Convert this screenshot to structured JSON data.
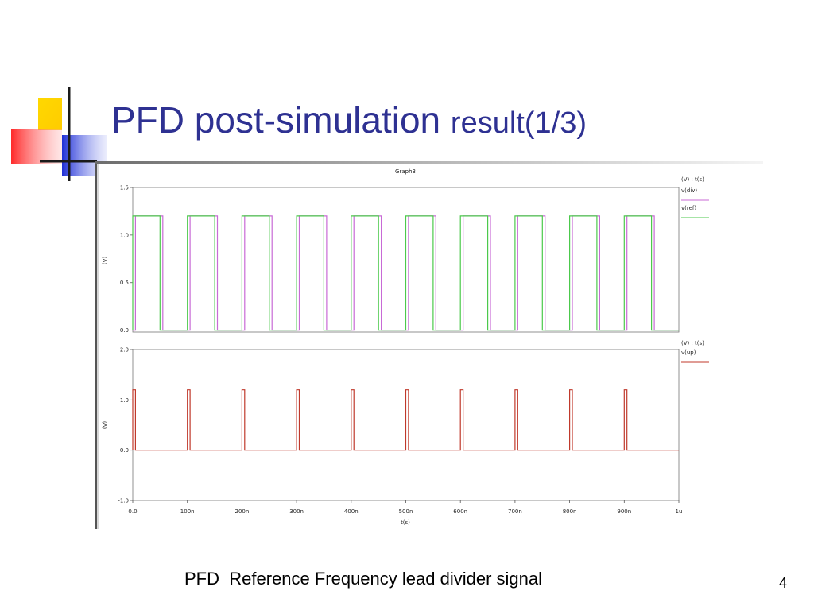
{
  "slide": {
    "title_main": "PFD post-simulation ",
    "title_sub": "result(1/3)",
    "caption": "PFD  Reference Frequency lead divider signal",
    "page_number": "4"
  },
  "colors": {
    "title": "#2e3192",
    "div_trace": "#c86ad6",
    "ref_trace": "#4cc94c",
    "up_trace": "#c0392b"
  },
  "chart_data": [
    {
      "type": "line",
      "title": "Graph3",
      "legend_header": "(V) : t(s)",
      "ylabel": "(V)",
      "xlabel": "",
      "xlim": [
        0,
        1000
      ],
      "ylim": [
        -0.02,
        1.5
      ],
      "x_ticks": [],
      "y_ticks": [
        "0.0",
        "0.5",
        "1.0",
        "1.5"
      ],
      "y_tick_values": [
        0.0,
        0.5,
        1.0,
        1.5
      ],
      "series": [
        {
          "name": "v(div)",
          "color": "#c86ad6",
          "x": [
            0,
            5,
            5,
            55,
            55,
            105,
            105,
            155,
            155,
            205,
            205,
            255,
            255,
            305,
            305,
            355,
            355,
            405,
            405,
            455,
            455,
            505,
            505,
            555,
            555,
            605,
            605,
            655,
            655,
            705,
            705,
            755,
            755,
            805,
            805,
            855,
            855,
            905,
            905,
            955,
            955,
            1000
          ],
          "y": [
            0,
            0,
            1.2,
            1.2,
            0,
            0,
            1.2,
            1.2,
            0,
            0,
            1.2,
            1.2,
            0,
            0,
            1.2,
            1.2,
            0,
            0,
            1.2,
            1.2,
            0,
            0,
            1.2,
            1.2,
            0,
            0,
            1.2,
            1.2,
            0,
            0,
            1.2,
            1.2,
            0,
            0,
            1.2,
            1.2,
            0,
            0,
            1.2,
            1.2,
            0,
            0
          ]
        },
        {
          "name": "v(ref)",
          "color": "#4cc94c",
          "x": [
            0,
            0,
            50,
            50,
            100,
            100,
            150,
            150,
            200,
            200,
            250,
            250,
            300,
            300,
            350,
            350,
            400,
            400,
            450,
            450,
            500,
            500,
            550,
            550,
            600,
            600,
            650,
            650,
            700,
            700,
            750,
            750,
            800,
            800,
            850,
            850,
            900,
            900,
            950,
            950,
            1000
          ],
          "y": [
            0,
            1.2,
            1.2,
            0,
            0,
            1.2,
            1.2,
            0,
            0,
            1.2,
            1.2,
            0,
            0,
            1.2,
            1.2,
            0,
            0,
            1.2,
            1.2,
            0,
            0,
            1.2,
            1.2,
            0,
            0,
            1.2,
            1.2,
            0,
            0,
            1.2,
            1.2,
            0,
            0,
            1.2,
            1.2,
            0,
            0,
            1.2,
            1.2,
            0,
            0
          ]
        }
      ]
    },
    {
      "type": "line",
      "title": "",
      "legend_header": "(V) : t(s)",
      "ylabel": "(V)",
      "xlabel": "t(s)",
      "xlim": [
        0,
        1000
      ],
      "ylim": [
        -1.0,
        2.0
      ],
      "x_ticks": [
        "0.0",
        "100n",
        "200n",
        "300n",
        "400n",
        "500n",
        "600n",
        "700n",
        "800n",
        "900n",
        "1u"
      ],
      "x_tick_values": [
        0,
        100,
        200,
        300,
        400,
        500,
        600,
        700,
        800,
        900,
        1000
      ],
      "y_ticks": [
        "-1.0",
        "0.0",
        "1.0",
        "2.0"
      ],
      "y_tick_values": [
        -1.0,
        0.0,
        1.0,
        2.0
      ],
      "series": [
        {
          "name": "v(up)",
          "color": "#c0392b",
          "x": [
            0,
            0,
            5,
            5,
            100,
            100,
            105,
            105,
            200,
            200,
            205,
            205,
            300,
            300,
            305,
            305,
            400,
            400,
            405,
            405,
            500,
            500,
            505,
            505,
            600,
            600,
            605,
            605,
            700,
            700,
            705,
            705,
            800,
            800,
            805,
            805,
            900,
            900,
            905,
            905,
            1000
          ],
          "y": [
            0,
            1.2,
            1.2,
            0,
            0,
            1.2,
            1.2,
            0,
            0,
            1.2,
            1.2,
            0,
            0,
            1.2,
            1.2,
            0,
            0,
            1.2,
            1.2,
            0,
            0,
            1.2,
            1.2,
            0,
            0,
            1.2,
            1.2,
            0,
            0,
            1.2,
            1.2,
            0,
            0,
            1.2,
            1.2,
            0,
            0,
            1.2,
            1.2,
            0,
            0
          ]
        }
      ]
    }
  ]
}
